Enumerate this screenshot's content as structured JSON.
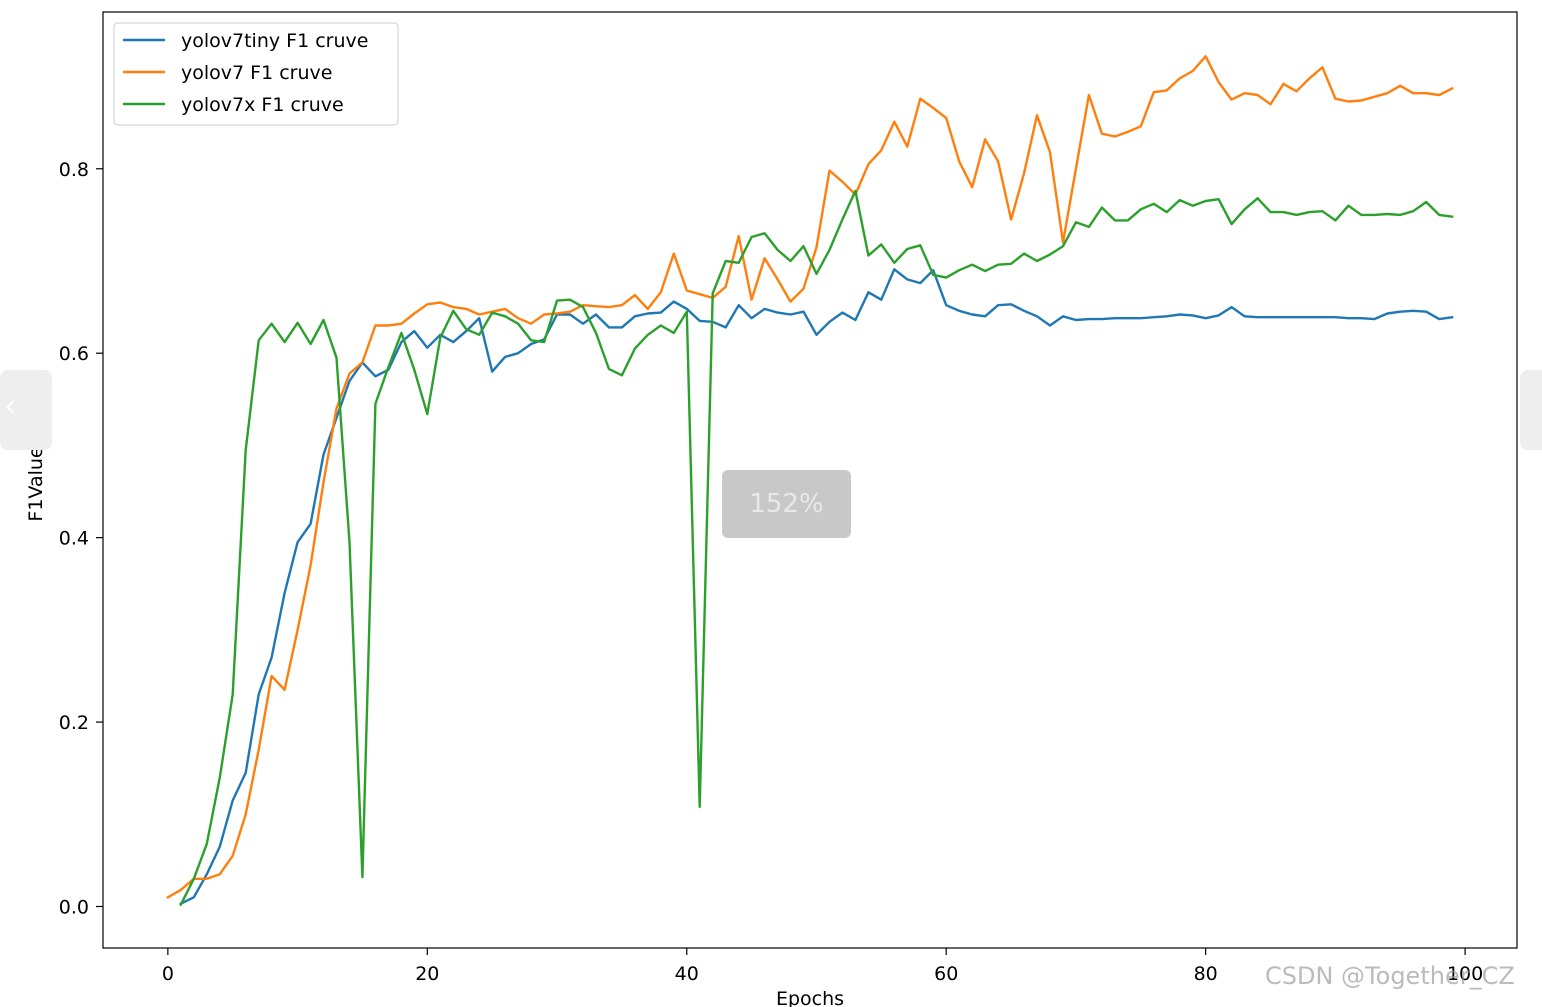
{
  "chart_data": {
    "type": "line",
    "title": "",
    "xlabel": "Epochs",
    "ylabel": "F1Value",
    "xlim": [
      -5,
      104
    ],
    "ylim": [
      -0.045,
      0.97
    ],
    "xticks": [
      0,
      20,
      40,
      60,
      80,
      100
    ],
    "yticks": [
      0.0,
      0.2,
      0.4,
      0.6,
      0.8
    ],
    "xtick_labels": [
      "0",
      "20",
      "40",
      "60",
      "80",
      "100"
    ],
    "ytick_labels": [
      "0.0",
      "0.2",
      "0.4",
      "0.6",
      "0.8"
    ],
    "grid": false,
    "legend_position": "upper-left",
    "series": [
      {
        "name": "yolov7tiny F1 cruve",
        "color": "#1f77b4",
        "x": [
          1,
          2,
          3,
          4,
          5,
          6,
          7,
          8,
          9,
          10,
          11,
          12,
          13,
          14,
          15,
          16,
          17,
          18,
          19,
          20,
          21,
          22,
          23,
          24,
          25,
          26,
          27,
          28,
          29,
          30,
          31,
          32,
          33,
          34,
          35,
          36,
          37,
          38,
          39,
          40,
          41,
          42,
          43,
          44,
          45,
          46,
          47,
          48,
          49,
          50,
          51,
          52,
          53,
          54,
          55,
          56,
          57,
          58,
          59,
          60,
          61,
          62,
          63,
          64,
          65,
          66,
          67,
          68,
          69,
          70,
          71,
          72,
          73,
          74,
          75,
          76,
          77,
          78,
          79,
          80,
          81,
          82,
          83,
          84,
          85,
          86,
          87,
          88,
          89,
          90,
          91,
          92,
          93,
          94,
          95,
          96,
          97,
          98,
          99
        ],
        "values": [
          0.003,
          0.01,
          0.035,
          0.065,
          0.115,
          0.145,
          0.23,
          0.27,
          0.34,
          0.395,
          0.415,
          0.49,
          0.53,
          0.57,
          0.59,
          0.575,
          0.582,
          0.612,
          0.624,
          0.606,
          0.62,
          0.612,
          0.624,
          0.638,
          0.58,
          0.596,
          0.6,
          0.61,
          0.615,
          0.642,
          0.642,
          0.632,
          0.642,
          0.628,
          0.628,
          0.64,
          0.643,
          0.644,
          0.656,
          0.648,
          0.635,
          0.634,
          0.628,
          0.652,
          0.638,
          0.648,
          0.644,
          0.642,
          0.645,
          0.62,
          0.634,
          0.644,
          0.636,
          0.666,
          0.658,
          0.691,
          0.68,
          0.676,
          0.69,
          0.652,
          0.646,
          0.642,
          0.64,
          0.652,
          0.653,
          0.646,
          0.64,
          0.63,
          0.64,
          0.636,
          0.637,
          0.637,
          0.638,
          0.638,
          0.638,
          0.639,
          0.64,
          0.642,
          0.641,
          0.638,
          0.641,
          0.65,
          0.64,
          0.639,
          0.639,
          0.639,
          0.639,
          0.639,
          0.639,
          0.639,
          0.638,
          0.638,
          0.637,
          0.643,
          0.645,
          0.646,
          0.645,
          0.637,
          0.639
        ]
      },
      {
        "name": "yolov7 F1 cruve",
        "color": "#ff7f0e",
        "x": [
          0,
          1,
          2,
          3,
          4,
          5,
          6,
          7,
          8,
          9,
          10,
          11,
          12,
          13,
          14,
          15,
          16,
          17,
          18,
          19,
          20,
          21,
          22,
          23,
          24,
          25,
          26,
          27,
          28,
          29,
          30,
          31,
          32,
          33,
          34,
          35,
          36,
          37,
          38,
          39,
          40,
          41,
          42,
          43,
          44,
          45,
          46,
          47,
          48,
          49,
          50,
          51,
          52,
          53,
          54,
          55,
          56,
          57,
          58,
          59,
          60,
          61,
          62,
          63,
          64,
          65,
          66,
          67,
          68,
          69,
          70,
          71,
          72,
          73,
          74,
          75,
          76,
          77,
          78,
          79,
          80,
          81,
          82,
          83,
          84,
          85,
          86,
          87,
          88,
          89,
          90,
          91,
          92,
          93,
          94,
          95,
          96,
          97,
          98,
          99
        ],
        "values": [
          0.01,
          0.018,
          0.03,
          0.03,
          0.035,
          0.055,
          0.1,
          0.17,
          0.25,
          0.235,
          0.3,
          0.37,
          0.46,
          0.54,
          0.578,
          0.59,
          0.63,
          0.63,
          0.632,
          0.643,
          0.653,
          0.655,
          0.65,
          0.648,
          0.642,
          0.645,
          0.648,
          0.638,
          0.632,
          0.642,
          0.643,
          0.645,
          0.652,
          0.651,
          0.65,
          0.652,
          0.663,
          0.648,
          0.666,
          0.708,
          0.668,
          0.664,
          0.66,
          0.672,
          0.727,
          0.658,
          0.703,
          0.68,
          0.656,
          0.67,
          0.715,
          0.798,
          0.786,
          0.772,
          0.805,
          0.82,
          0.851,
          0.824,
          0.876,
          0.866,
          0.855,
          0.808,
          0.78,
          0.832,
          0.808,
          0.745,
          0.795,
          0.858,
          0.818,
          0.72,
          0.8,
          0.88,
          0.838,
          0.835,
          0.84,
          0.846,
          0.883,
          0.885,
          0.898,
          0.906,
          0.922,
          0.894,
          0.875,
          0.882,
          0.88,
          0.87,
          0.892,
          0.884,
          0.898,
          0.91,
          0.876,
          0.873,
          0.874,
          0.878,
          0.882,
          0.89,
          0.882,
          0.882,
          0.88,
          0.887
        ]
      },
      {
        "name": "yolov7x F1 cruve",
        "color": "#2ca02c",
        "x": [
          1,
          2,
          3,
          4,
          5,
          6,
          7,
          8,
          9,
          10,
          11,
          12,
          13,
          14,
          15,
          16,
          17,
          18,
          19,
          20,
          21,
          22,
          23,
          24,
          25,
          26,
          27,
          28,
          29,
          30,
          31,
          32,
          33,
          34,
          35,
          36,
          37,
          38,
          39,
          40,
          41,
          42,
          43,
          44,
          45,
          46,
          47,
          48,
          49,
          50,
          51,
          52,
          53,
          54,
          55,
          56,
          57,
          58,
          59,
          60,
          61,
          62,
          63,
          64,
          65,
          66,
          67,
          68,
          69,
          70,
          71,
          72,
          73,
          74,
          75,
          76,
          77,
          78,
          79,
          80,
          81,
          82,
          83,
          84,
          85,
          86,
          87,
          88,
          89,
          90,
          91,
          92,
          93,
          94,
          95,
          96,
          97,
          98,
          99
        ],
        "values": [
          0.002,
          0.03,
          0.068,
          0.14,
          0.23,
          0.495,
          0.614,
          0.632,
          0.612,
          0.633,
          0.61,
          0.636,
          0.595,
          0.395,
          0.032,
          0.545,
          0.585,
          0.622,
          0.582,
          0.534,
          0.617,
          0.646,
          0.626,
          0.62,
          0.644,
          0.64,
          0.632,
          0.614,
          0.612,
          0.657,
          0.658,
          0.65,
          0.622,
          0.583,
          0.576,
          0.605,
          0.62,
          0.63,
          0.622,
          0.645,
          0.108,
          0.665,
          0.7,
          0.698,
          0.726,
          0.73,
          0.712,
          0.7,
          0.716,
          0.686,
          0.712,
          0.745,
          0.776,
          0.706,
          0.718,
          0.698,
          0.713,
          0.717,
          0.685,
          0.682,
          0.69,
          0.696,
          0.689,
          0.696,
          0.697,
          0.708,
          0.7,
          0.707,
          0.716,
          0.742,
          0.737,
          0.758,
          0.744,
          0.744,
          0.756,
          0.762,
          0.753,
          0.766,
          0.76,
          0.765,
          0.767,
          0.74,
          0.756,
          0.768,
          0.753,
          0.753,
          0.75,
          0.753,
          0.754,
          0.744,
          0.76,
          0.75,
          0.75,
          0.751,
          0.75,
          0.754,
          0.764,
          0.75,
          0.748
        ]
      }
    ]
  },
  "ui": {
    "zoom_label": "152%",
    "watermark": "CSDN @Together_CZ",
    "prev_arrow": "‹"
  }
}
